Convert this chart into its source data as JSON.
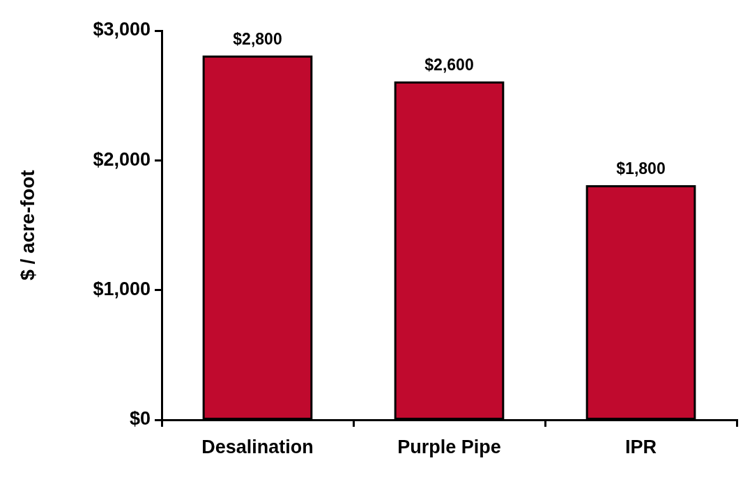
{
  "chart_data": {
    "type": "bar",
    "ylabel": "$ / acre-foot",
    "categories": [
      "Desalination",
      "Purple Pipe",
      "IPR"
    ],
    "values": [
      2800,
      2600,
      1800
    ],
    "value_labels": [
      "$2,800",
      "$2,600",
      "$1,800"
    ],
    "color": "#c00a2e",
    "ylim": [
      0,
      3000
    ],
    "yticks": [
      {
        "value": 0,
        "label": "$0"
      },
      {
        "value": 1000,
        "label": "$1,000"
      },
      {
        "value": 2000,
        "label": "$2,000"
      },
      {
        "value": 3000,
        "label": "$3,000"
      }
    ],
    "grid": false,
    "legend": false
  }
}
